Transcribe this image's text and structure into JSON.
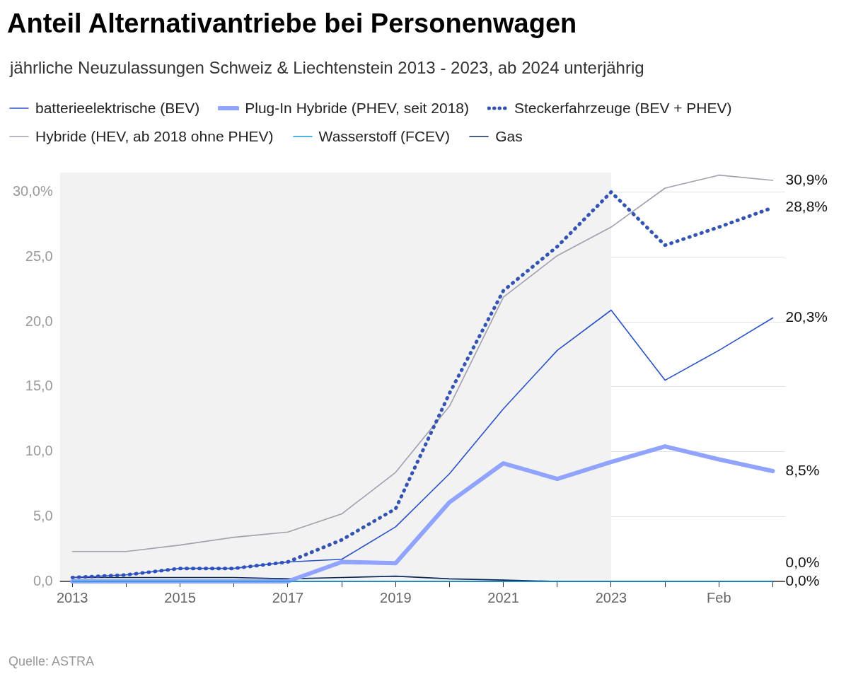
{
  "chart_data": {
    "type": "line",
    "title": "Anteil Alternativantriebe bei Personenwagen",
    "subtitle": "jährliche Neuzulassungen Schweiz & Liechtenstein 2013 - 2023, ab 2024 unterjährig",
    "categories": [
      "2013",
      null,
      "2015",
      null,
      "2017",
      null,
      "2019",
      null,
      "2021",
      null,
      "2023",
      null,
      "Feb",
      null
    ],
    "ylim": [
      0,
      31.5
    ],
    "yticks": [
      {
        "value": 0,
        "label": "0,0"
      },
      {
        "value": 5,
        "label": "5,0"
      },
      {
        "value": 10,
        "label": "10,0"
      },
      {
        "value": 15,
        "label": "15,0"
      },
      {
        "value": 20,
        "label": "20,0"
      },
      {
        "value": 25,
        "label": "25,0"
      },
      {
        "value": 30,
        "label": "30,0%"
      }
    ],
    "grid": "y",
    "legend": "top left",
    "marker": "none",
    "bands": [
      {
        "axis": "x",
        "from": "2013",
        "to": "2023",
        "color": "#f2f2f2"
      }
    ],
    "series": [
      {
        "name": "batterieelektrische (BEV)",
        "color": "#2850c8",
        "line_style": "solid",
        "values": [
          0.3,
          0.5,
          1.0,
          1.0,
          1.5,
          1.7,
          4.2,
          8.3,
          13.3,
          17.8,
          20.9,
          15.5,
          17.8,
          20.3
        ],
        "value_labels": [
          null,
          null,
          null,
          null,
          null,
          null,
          null,
          null,
          null,
          null,
          null,
          null,
          null,
          "20,3%"
        ]
      },
      {
        "name": "Plug-In Hybride (PHEV, seit 2018)",
        "color": "#8fa3ff",
        "line_style": "solid",
        "values": [
          0,
          0,
          0,
          0,
          0,
          1.5,
          1.4,
          6.1,
          9.1,
          7.9,
          9.2,
          10.4,
          9.4,
          8.5
        ],
        "value_labels": [
          null,
          null,
          null,
          null,
          null,
          null,
          null,
          null,
          null,
          null,
          null,
          null,
          null,
          "8,5%"
        ]
      },
      {
        "name": "Steckerfahrzeuge (BEV + PHEV)",
        "color": "#3454b4",
        "line_style": "dotted",
        "values": [
          0.3,
          0.5,
          1.0,
          1.0,
          1.5,
          3.2,
          5.6,
          14.5,
          22.4,
          25.8,
          30.0,
          25.9,
          27.3,
          28.8
        ],
        "value_labels": [
          null,
          null,
          null,
          null,
          null,
          null,
          null,
          null,
          null,
          null,
          null,
          null,
          null,
          "28,8%"
        ]
      },
      {
        "name": "Hybride (HEV, ab 2018 ohne PHEV)",
        "color": "#a0a0b0",
        "line_style": "solid",
        "values": [
          2.3,
          2.3,
          2.8,
          3.4,
          3.8,
          5.2,
          8.4,
          13.5,
          21.9,
          25.1,
          27.3,
          30.3,
          31.3,
          30.9
        ],
        "value_labels": [
          null,
          null,
          null,
          null,
          null,
          null,
          null,
          null,
          null,
          null,
          null,
          null,
          null,
          "30,9%"
        ]
      },
      {
        "name": "Wasserstoff (FCEV)",
        "color": "#1a9ad6",
        "line_style": "solid",
        "values": [
          0,
          0,
          0,
          0,
          0,
          0,
          0,
          0,
          0,
          0,
          0,
          0,
          0,
          0
        ],
        "value_labels": [
          null,
          null,
          null,
          null,
          null,
          null,
          null,
          null,
          null,
          null,
          null,
          null,
          null,
          "0,0%"
        ]
      },
      {
        "name": "Gas",
        "color": "#0b2a5a",
        "line_style": "solid",
        "values": [
          0.3,
          0.3,
          0.3,
          0.3,
          0.2,
          0.3,
          0.4,
          0.2,
          0.1,
          0,
          0,
          0,
          0,
          0
        ],
        "value_labels": [
          null,
          null,
          null,
          null,
          null,
          null,
          null,
          null,
          null,
          null,
          null,
          null,
          null,
          "0,0%"
        ]
      }
    ],
    "annotations": [
      "Quelle: ASTRA"
    ]
  }
}
